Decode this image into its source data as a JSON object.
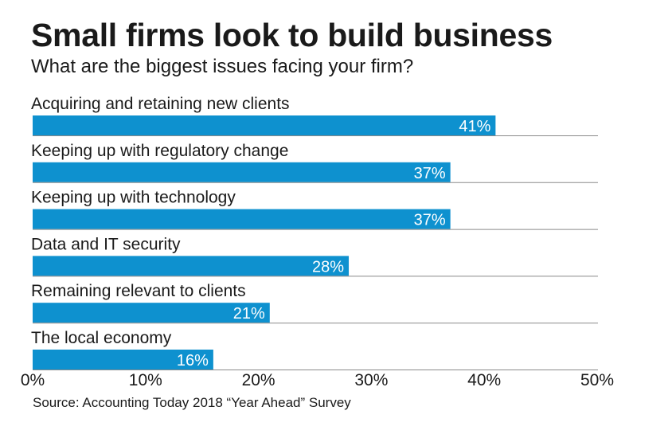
{
  "chart_data": {
    "type": "bar",
    "orientation": "horizontal",
    "title": "Small firms look to build business",
    "subtitle": "What are the biggest issues facing your firm?",
    "source": "Source: Accounting Today 2018 “Year Ahead” Survey",
    "categories": [
      "Acquiring and retaining new clients",
      "Keeping up with regulatory change",
      "Keeping up with technology",
      "Data and IT security",
      "Remaining relevant to clients",
      "The local economy"
    ],
    "values": [
      41,
      37,
      37,
      28,
      21,
      16
    ],
    "value_labels": [
      "41%",
      "37%",
      "37%",
      "28%",
      "21%",
      "16%"
    ],
    "xlim": [
      0,
      50
    ],
    "x_ticks": [
      0,
      10,
      20,
      30,
      40,
      50
    ],
    "x_tick_labels": [
      "0%",
      "10%",
      "20%",
      "30%",
      "40%",
      "50%"
    ],
    "bar_color": "#0e91cf",
    "separator_color": "#8a8a8a",
    "grid": false,
    "legend": "none"
  }
}
